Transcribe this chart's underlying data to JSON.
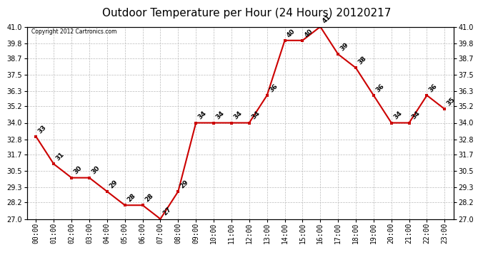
{
  "title": "Outdoor Temperature per Hour (24 Hours) 20120217",
  "copyright_text": "Copyright 2012 Cartronics.com",
  "hours": [
    "00:00",
    "01:00",
    "02:00",
    "03:00",
    "04:00",
    "05:00",
    "06:00",
    "07:00",
    "08:00",
    "09:00",
    "10:00",
    "11:00",
    "12:00",
    "13:00",
    "14:00",
    "15:00",
    "16:00",
    "17:00",
    "18:00",
    "19:00",
    "20:00",
    "21:00",
    "22:00",
    "23:00"
  ],
  "temps": [
    33,
    31,
    30,
    30,
    29,
    28,
    28,
    27,
    29,
    34,
    34,
    34,
    34,
    36,
    40,
    40,
    41,
    39,
    38,
    36,
    34,
    34,
    36,
    35
  ],
  "ylim_min": 27.0,
  "ylim_max": 41.0,
  "yticks": [
    27.0,
    28.2,
    29.3,
    30.5,
    31.7,
    32.8,
    34.0,
    35.2,
    36.3,
    37.5,
    38.7,
    39.8,
    41.0
  ],
  "line_color": "#cc0000",
  "marker_color": "#cc0000",
  "bg_color": "#ffffff",
  "grid_color": "#bbbbbb",
  "title_fontsize": 11,
  "label_fontsize": 7,
  "annot_fontsize": 6.5
}
